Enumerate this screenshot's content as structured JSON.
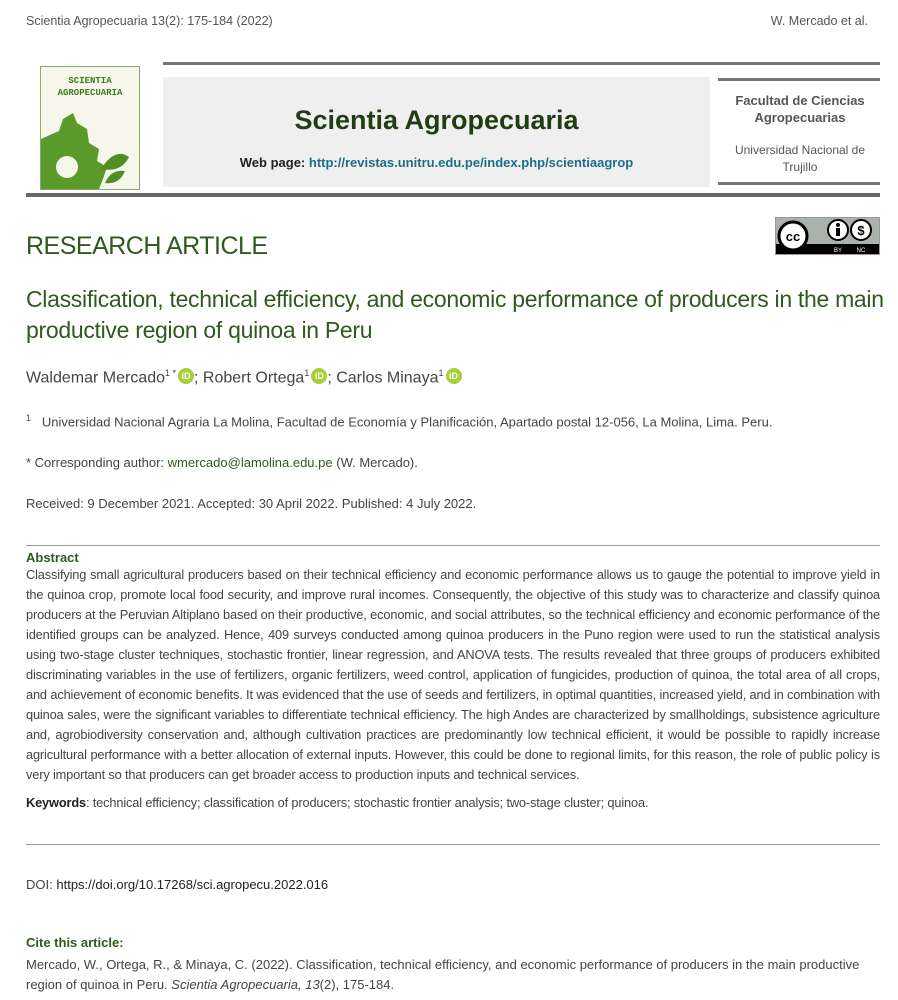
{
  "running_header": {
    "left": "Scientia Agropecuaria 13(2): 175-184 (2022)",
    "right": "W. Mercado et al."
  },
  "journal": {
    "logo_text": [
      "SCIENTIA",
      "AGROPECUARIA"
    ],
    "title": "Scientia Agropecuaria",
    "web_label": "Web page:",
    "web_url": "http://revistas.unitru.edu.pe/index.php/scientiaagrop",
    "faculty": "Facultad de Ciencias Agropecuarias",
    "university": "Universidad Nacional de Trujillo",
    "license_badge": [
      "BY",
      "NC"
    ],
    "colors": {
      "accent": "#2f5a1e",
      "logo_green": "#5a9a2a",
      "link": "#1d6e8a"
    }
  },
  "article": {
    "type": "RESEARCH ARTICLE",
    "title": "Classification, technical efficiency, and economic performance of producers in the main productive region of quinoa in Peru",
    "authors": [
      {
        "name": "Waldemar Mercado",
        "sup": "1 *"
      },
      {
        "name": "Robert Ortega",
        "sup": "1"
      },
      {
        "name": "Carlos Minaya",
        "sup": "1"
      }
    ],
    "affiliation_num": "1",
    "affiliation": "Universidad Nacional Agraria La Molina, Facultad de Economía y Planificación, Apartado postal 12-056, La Molina, Lima. Peru.",
    "corresponding_label": "* Corresponding author:",
    "corresponding_email": "wmercado@lamolina.edu.pe",
    "corresponding_name": "(W. Mercado).",
    "dates": "Received: 9 December 2021. Accepted: 30 April 2022. Published: 4 July 2022."
  },
  "abstract": {
    "heading": "Abstract",
    "text": "Classifying small agricultural producers based on their technical efficiency and economic performance allows us to gauge the potential to improve yield in the quinoa crop, promote local food security, and improve rural incomes. Consequently, the objective of this study was to characterize and classify quinoa producers at the Peruvian Altiplano based on their productive, economic, and social attributes, so the technical efficiency and economic performance of the identified groups can be analyzed. Hence, 409 surveys conducted among quinoa producers in the Puno region were used to run the statistical analysis using two-stage cluster techniques, stochastic frontier, linear regression, and ANOVA tests. The results revealed that three groups of producers exhibited discriminating variables in the use of fertilizers, organic fertilizers, weed control, application of fungicides, production of quinoa, the total area of all crops, and achievement of economic benefits. It was evidenced that the use of seeds and fertilizers, in optimal quantities, increased yield, and in combination with quinoa sales, were the significant variables to differentiate technical efficiency. The high Andes are characterized by smallholdings, subsistence agriculture and, agrobiodiversity conservation and, although cultivation practices are predominantly low technical efficient, it would be possible to rapidly increase agricultural performance with a better allocation of external inputs. However, this could be done to regional limits, for this reason, the role of public policy is very important so that producers can get broader access to production inputs and technical services.",
    "keywords_label": "Keywords",
    "keywords": ": technical efficiency; classification of producers; stochastic frontier analysis; two-stage cluster; quinoa."
  },
  "doi": {
    "label": "DOI:",
    "url": "https://doi.org/10.17268/sci.agropecu.2022.016"
  },
  "cite": {
    "heading": "Cite this article:",
    "prefix": "Mercado, W., Ortega, R., & Minaya, C. (2022). Classification, technical efficiency, and economic performance of producers in the main productive region of quinoa in Peru. ",
    "journal": "Scientia Agropecuaria, 13",
    "issue": "(2), 175-184."
  }
}
